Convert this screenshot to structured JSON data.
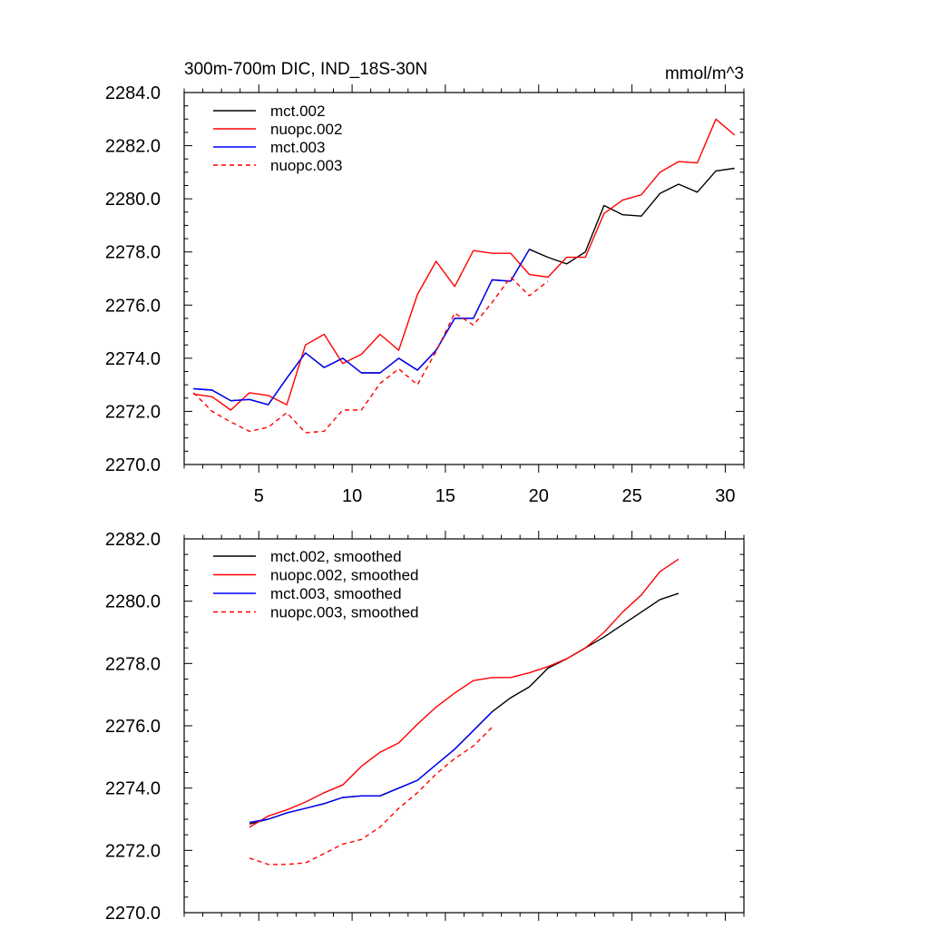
{
  "chart_data": [
    {
      "type": "line",
      "title": "300m-700m DIC, IND_18S-30N",
      "units": "mmol/m^3",
      "xlim": [
        1,
        31
      ],
      "ylim": [
        2270,
        2284
      ],
      "x_ticks": [
        5,
        10,
        15,
        20,
        25,
        30
      ],
      "y_ticks": [
        2270.0,
        2272.0,
        2274.0,
        2276.0,
        2278.0,
        2280.0,
        2282.0,
        2284.0
      ],
      "y_tick_labels": [
        "2270.0",
        "2272.0",
        "2274.0",
        "2276.0",
        "2278.0",
        "2280.0",
        "2282.0",
        "2284.0"
      ],
      "x_tick_labels": [
        "5",
        "10",
        "15",
        "20",
        "25",
        "30"
      ],
      "legend_position": "top-left",
      "series": [
        {
          "name": "mct.002",
          "color": "#000000",
          "dash": "solid",
          "x": [
            1.5,
            2.5,
            3.5,
            4.5,
            5.5,
            6.5,
            7.5,
            8.5,
            9.5,
            10.5,
            11.5,
            12.5,
            13.5,
            14.5,
            15.5,
            16.5,
            17.5,
            18.5,
            19.5,
            20.5,
            21.5,
            22.5,
            23.5,
            24.5,
            25.5,
            26.5,
            27.5,
            28.5,
            29.5,
            30.5
          ],
          "y": [
            2272.85,
            2272.8,
            2272.4,
            2272.45,
            2272.25,
            2273.25,
            2274.2,
            2273.65,
            2274.0,
            2273.45,
            2273.45,
            2274.0,
            2273.55,
            2274.3,
            2275.5,
            2275.5,
            2276.95,
            2276.9,
            2278.1,
            2277.8,
            2277.55,
            2278.0,
            2279.75,
            2279.4,
            2279.35,
            2280.2,
            2280.55,
            2280.25,
            2281.05,
            2281.15
          ]
        },
        {
          "name": "nuopc.002",
          "color": "#ff0000",
          "dash": "solid",
          "x": [
            1.5,
            2.5,
            3.5,
            4.5,
            5.5,
            6.5,
            7.5,
            8.5,
            9.5,
            10.5,
            11.5,
            12.5,
            13.5,
            14.5,
            15.5,
            16.5,
            17.5,
            18.5,
            19.5,
            20.5,
            21.5,
            22.5,
            23.5,
            24.5,
            25.5,
            26.5,
            27.5,
            28.5,
            29.5,
            30.5
          ],
          "y": [
            2272.65,
            2272.55,
            2272.05,
            2272.7,
            2272.6,
            2272.25,
            2274.5,
            2274.9,
            2273.8,
            2274.15,
            2274.9,
            2274.3,
            2276.4,
            2277.65,
            2276.7,
            2278.05,
            2277.95,
            2277.95,
            2277.15,
            2277.05,
            2277.8,
            2277.8,
            2279.45,
            2279.95,
            2280.15,
            2281.0,
            2281.4,
            2281.35,
            2283.0,
            2282.4
          ]
        },
        {
          "name": "mct.003",
          "color": "#0000ff",
          "dash": "solid",
          "x": [
            1.5,
            2.5,
            3.5,
            4.5,
            5.5,
            6.5,
            7.5,
            8.5,
            9.5,
            10.5,
            11.5,
            12.5,
            13.5,
            14.5,
            15.5,
            16.5,
            17.5,
            18.5,
            19.5
          ],
          "y": [
            2272.85,
            2272.8,
            2272.4,
            2272.45,
            2272.25,
            2273.25,
            2274.2,
            2273.65,
            2274.0,
            2273.45,
            2273.45,
            2274.0,
            2273.55,
            2274.3,
            2275.5,
            2275.5,
            2276.95,
            2276.9,
            2278.1
          ]
        },
        {
          "name": "nuopc.003",
          "color": "#ff0000",
          "dash": "dashed",
          "x": [
            1.5,
            2.5,
            3.5,
            4.5,
            5.5,
            6.5,
            7.5,
            8.5,
            9.5,
            10.5,
            11.5,
            12.5,
            13.5,
            14.5,
            15.5,
            16.5,
            17.5,
            18.5,
            19.5,
            20.5
          ],
          "y": [
            2272.7,
            2272.0,
            2271.6,
            2271.25,
            2271.4,
            2271.95,
            2271.2,
            2271.25,
            2272.05,
            2272.05,
            2273.05,
            2273.6,
            2273.0,
            2274.25,
            2275.7,
            2275.25,
            2276.1,
            2277.05,
            2276.35,
            2276.9
          ]
        }
      ]
    },
    {
      "type": "line",
      "xlim": [
        1,
        31
      ],
      "ylim": [
        2270,
        2282
      ],
      "x_ticks": [
        5,
        10,
        15,
        20,
        25,
        30
      ],
      "y_ticks": [
        2270.0,
        2272.0,
        2274.0,
        2276.0,
        2278.0,
        2280.0,
        2282.0
      ],
      "y_tick_labels": [
        "2270.0",
        "2272.0",
        "2274.0",
        "2276.0",
        "2278.0",
        "2280.0",
        "2282.0"
      ],
      "legend_position": "top-left",
      "series": [
        {
          "name": "mct.002, smoothed",
          "color": "#000000",
          "dash": "solid",
          "x": [
            4.5,
            5.5,
            6.5,
            7.5,
            8.5,
            9.5,
            10.5,
            11.5,
            12.5,
            13.5,
            14.5,
            15.5,
            16.5,
            17.5,
            18.5,
            19.5,
            20.5,
            21.5,
            22.5,
            23.5,
            24.5,
            25.5,
            26.5,
            27.5
          ],
          "y": [
            2272.85,
            2273.0,
            2273.2,
            2273.35,
            2273.5,
            2273.7,
            2273.75,
            2273.75,
            2274.0,
            2274.25,
            2274.75,
            2275.25,
            2275.85,
            2276.45,
            2276.9,
            2277.25,
            2277.85,
            2278.15,
            2278.5,
            2278.85,
            2279.25,
            2279.65,
            2280.05,
            2280.25
          ]
        },
        {
          "name": "nuopc.002, smoothed",
          "color": "#ff0000",
          "dash": "solid",
          "x": [
            4.5,
            5.5,
            6.5,
            7.5,
            8.5,
            9.5,
            10.5,
            11.5,
            12.5,
            13.5,
            14.5,
            15.5,
            16.5,
            17.5,
            18.5,
            19.5,
            20.5,
            21.5,
            22.5,
            23.5,
            24.5,
            25.5,
            26.5,
            27.5
          ],
          "y": [
            2272.75,
            2273.1,
            2273.3,
            2273.55,
            2273.85,
            2274.1,
            2274.7,
            2275.15,
            2275.45,
            2276.05,
            2276.6,
            2277.05,
            2277.45,
            2277.55,
            2277.55,
            2277.7,
            2277.9,
            2278.15,
            2278.5,
            2279.0,
            2279.65,
            2280.2,
            2280.95,
            2281.35
          ]
        },
        {
          "name": "mct.003, smoothed",
          "color": "#0000ff",
          "dash": "solid",
          "x": [
            4.5,
            5.5,
            6.5,
            7.5,
            8.5,
            9.5,
            10.5,
            11.5,
            12.5,
            13.5,
            14.5,
            15.5,
            16.5,
            17.5
          ],
          "y": [
            2272.9,
            2273.0,
            2273.2,
            2273.35,
            2273.5,
            2273.7,
            2273.75,
            2273.75,
            2274.0,
            2274.25,
            2274.75,
            2275.25,
            2275.85,
            2276.45
          ]
        },
        {
          "name": "nuopc.003, smoothed",
          "color": "#ff0000",
          "dash": "dashed",
          "x": [
            4.5,
            5.5,
            6.5,
            7.5,
            8.5,
            9.5,
            10.5,
            11.5,
            12.5,
            13.5,
            14.5,
            15.5,
            16.5,
            17.5
          ],
          "y": [
            2271.75,
            2271.55,
            2271.55,
            2271.6,
            2271.9,
            2272.2,
            2272.35,
            2272.75,
            2273.35,
            2273.85,
            2274.45,
            2274.95,
            2275.35,
            2275.95
          ]
        }
      ]
    }
  ]
}
